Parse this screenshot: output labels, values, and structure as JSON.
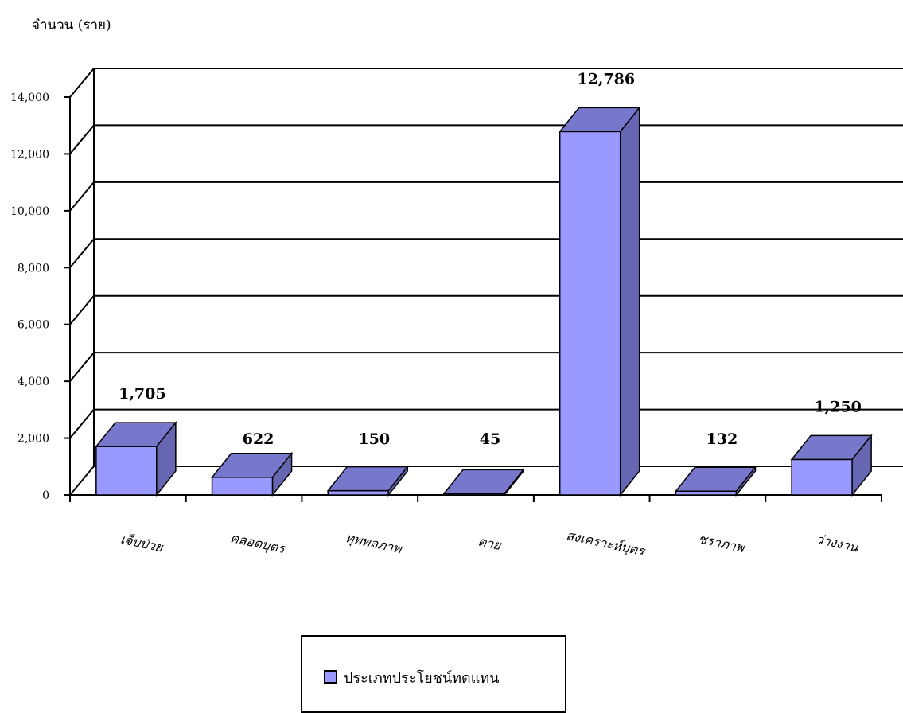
{
  "chart_data": {
    "type": "bar",
    "ylabel": "จำนวน (ราย)",
    "categories": [
      "เจ็บป่วย",
      "คลอดบุตร",
      "ทุพพลภาพ",
      "ตาย",
      "สงเคราะห์บุตร",
      "ชราภาพ",
      "ว่างงาน"
    ],
    "series": [
      {
        "name": "ประเภทประโยชน์ทดแทน",
        "values": [
          1705,
          622,
          150,
          45,
          12786,
          132,
          1250
        ]
      }
    ],
    "data_labels": [
      "1,705",
      "622",
      "150",
      "45",
      "12,786",
      "132",
      "1,250"
    ],
    "yticks": [
      "0",
      "2,000",
      "4,000",
      "6,000",
      "8,000",
      "10,000",
      "12,000",
      "14,000"
    ],
    "ylim": [
      0,
      14000
    ],
    "grid": true,
    "legend_position": "bottom",
    "colors": {
      "bar_front": "#9999ff",
      "bar_top": "#7777cc",
      "bar_side": "#6666b3",
      "grid": "#000000"
    }
  }
}
